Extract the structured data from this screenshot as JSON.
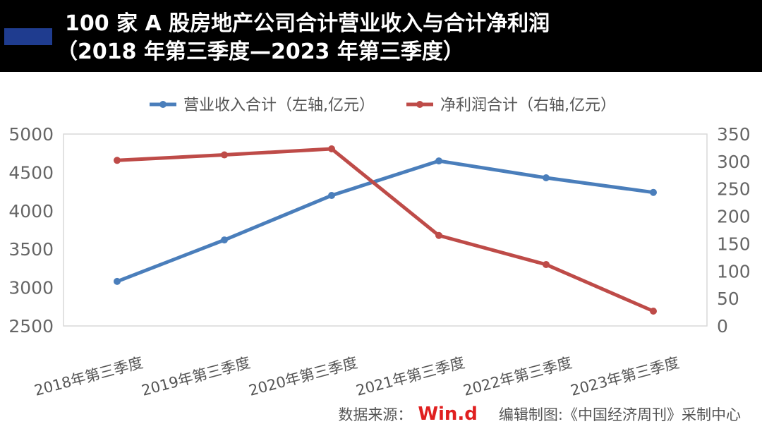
{
  "header": {
    "title_line1": "100 家 A 股房地产公司合计营业收入与合计净利润",
    "title_line2": "（2018 年第三季度—2023 年第三季度）",
    "accent_color": "#1f3c8f"
  },
  "footer": {
    "source_prefix": "数据来源：",
    "source_brand": "Win.d",
    "editor": "编辑制图:《中国经济周刊》采制中心"
  },
  "chart_data": {
    "type": "line",
    "categories": [
      "2018年第三季度",
      "2019年第三季度",
      "2020年第三季度",
      "2021年第三季度",
      "2022年第三季度",
      "2023年第三季度"
    ],
    "series": [
      {
        "name": "营业收入合计（左轴,亿元）",
        "axis": "left",
        "color": "#4a7ebb",
        "values": [
          3080,
          3620,
          4200,
          4650,
          4430,
          4240
        ]
      },
      {
        "name": "净利润合计（右轴,亿元）",
        "axis": "right",
        "color": "#be4b48",
        "values": [
          302,
          312,
          323,
          165,
          112,
          27
        ]
      }
    ],
    "y_left": {
      "min": 2500,
      "max": 5000,
      "ticks": [
        "2500",
        "3000",
        "3500",
        "4000",
        "4500",
        "5000"
      ]
    },
    "y_right": {
      "min": 0,
      "max": 350,
      "ticks": [
        "0",
        "50",
        "100",
        "150",
        "200",
        "250",
        "300",
        "350"
      ]
    },
    "legend_position": "top",
    "grid": false
  }
}
